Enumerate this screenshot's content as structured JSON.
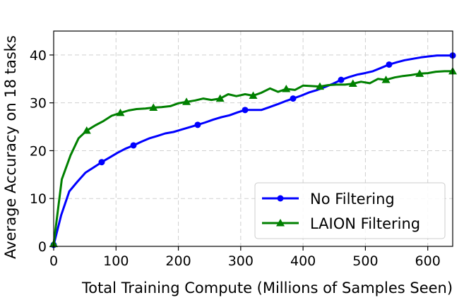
{
  "chart_data": {
    "type": "line",
    "xlabel": "Total Training Compute (Millions of Samples Seen)",
    "ylabel": "Average Accuracy on 18 tasks",
    "xlim": [
      0,
      640
    ],
    "ylim": [
      0,
      45
    ],
    "xticks": [
      0,
      100,
      200,
      300,
      400,
      500,
      600
    ],
    "yticks": [
      0,
      10,
      20,
      30,
      40
    ],
    "grid": true,
    "legend_position": "lower-right",
    "series": [
      {
        "name": "No Filtering",
        "color": "#0000ff",
        "marker": "circle",
        "x": [
          0,
          12,
          25,
          38,
          51,
          64,
          77,
          90,
          103,
          115,
          128,
          141,
          154,
          167,
          179,
          192,
          205,
          218,
          231,
          243,
          256,
          269,
          282,
          295,
          307,
          320,
          333,
          346,
          359,
          371,
          384,
          397,
          410,
          423,
          435,
          448,
          461,
          474,
          487,
          499,
          512,
          525,
          538,
          551,
          563,
          576,
          589,
          602,
          615,
          627,
          640
        ],
        "y": [
          0.3,
          6.5,
          11.5,
          13.5,
          15.4,
          16.5,
          17.6,
          18.6,
          19.6,
          20.4,
          21.1,
          21.9,
          22.6,
          23.1,
          23.6,
          23.9,
          24.4,
          24.9,
          25.4,
          25.9,
          26.5,
          27.0,
          27.4,
          28.0,
          28.5,
          28.5,
          28.5,
          29.1,
          29.7,
          30.3,
          30.9,
          31.5,
          32.2,
          32.7,
          33.3,
          34.0,
          34.8,
          35.4,
          35.9,
          36.2,
          36.6,
          37.3,
          38.0,
          38.5,
          38.9,
          39.2,
          39.5,
          39.7,
          39.9,
          39.9,
          39.9
        ],
        "marker_x": [
          0,
          77,
          128,
          231,
          307,
          384,
          461,
          538,
          640
        ],
        "marker_y": [
          0.3,
          17.6,
          21.1,
          25.4,
          28.5,
          30.9,
          34.8,
          38.0,
          39.9
        ]
      },
      {
        "name": "LAION Filtering",
        "color": "#008000",
        "marker": "triangle",
        "x": [
          0,
          13,
          27,
          40,
          53,
          67,
          80,
          93,
          107,
          120,
          133,
          147,
          160,
          173,
          187,
          200,
          213,
          227,
          240,
          253,
          267,
          280,
          293,
          307,
          320,
          333,
          347,
          360,
          373,
          387,
          400,
          413,
          427,
          440,
          453,
          467,
          480,
          493,
          507,
          520,
          533,
          547,
          560,
          573,
          587,
          600,
          613,
          627,
          640
        ],
        "y": [
          0.5,
          14.0,
          19.0,
          22.6,
          24.2,
          25.3,
          26.2,
          27.3,
          27.9,
          28.4,
          28.7,
          28.8,
          29.0,
          29.1,
          29.3,
          29.9,
          30.2,
          30.5,
          30.9,
          30.6,
          30.9,
          31.8,
          31.4,
          31.8,
          31.5,
          32.1,
          33.0,
          32.3,
          32.9,
          32.7,
          33.6,
          33.5,
          33.4,
          33.7,
          33.8,
          33.8,
          34.0,
          34.4,
          34.1,
          35.0,
          34.8,
          35.3,
          35.6,
          35.8,
          36.1,
          36.2,
          36.5,
          36.6,
          36.6
        ],
        "marker_x": [
          0,
          53,
          107,
          160,
          213,
          267,
          320,
          373,
          427,
          480,
          533,
          587,
          640
        ],
        "marker_y": [
          0.5,
          24.2,
          27.9,
          29.0,
          30.2,
          30.9,
          31.5,
          32.9,
          33.4,
          34.0,
          34.8,
          36.1,
          36.6
        ]
      }
    ]
  }
}
